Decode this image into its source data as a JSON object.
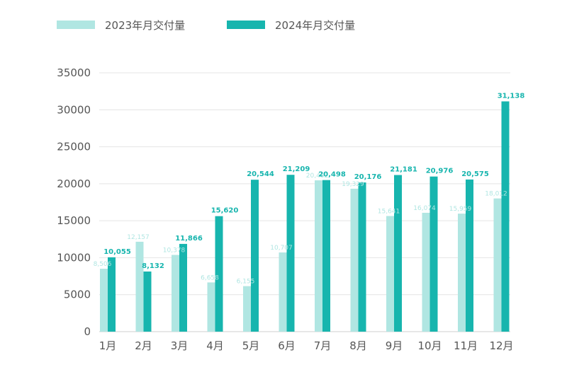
{
  "chart_data": {
    "type": "bar",
    "title": "",
    "xlabel": "",
    "ylabel": "",
    "ylim": [
      0,
      35000
    ],
    "yticks": [
      0,
      5000,
      10000,
      15000,
      20000,
      25000,
      30000,
      35000
    ],
    "grid": true,
    "legend_position": "top-left",
    "categories": [
      "1月",
      "2月",
      "3月",
      "4月",
      "5月",
      "6月",
      "7月",
      "8月",
      "9月",
      "10月",
      "11月",
      "12月"
    ],
    "series": [
      {
        "name": "2023年月交付量",
        "color": "#b0e6e2",
        "values": [
          8506,
          12157,
          10378,
          6658,
          6155,
          10707,
          20462,
          19329,
          15641,
          16074,
          15959,
          18012
        ],
        "labels": [
          "8,506",
          "12,157",
          "10,378",
          "6,658",
          "6,155",
          "10,707",
          "20,462",
          "19,329",
          "15,641",
          "16,074",
          "15,959",
          "18,012"
        ]
      },
      {
        "name": "2024年月交付量",
        "color": "#17b5ae",
        "values": [
          10055,
          8132,
          11866,
          15620,
          20544,
          21209,
          20498,
          20176,
          21181,
          20976,
          20575,
          31138
        ],
        "labels": [
          "10,055",
          "8,132",
          "11,866",
          "15,620",
          "20,544",
          "21,209",
          "20,498",
          "20,176",
          "21,181",
          "20,976",
          "20,575",
          "31,138"
        ]
      }
    ]
  }
}
